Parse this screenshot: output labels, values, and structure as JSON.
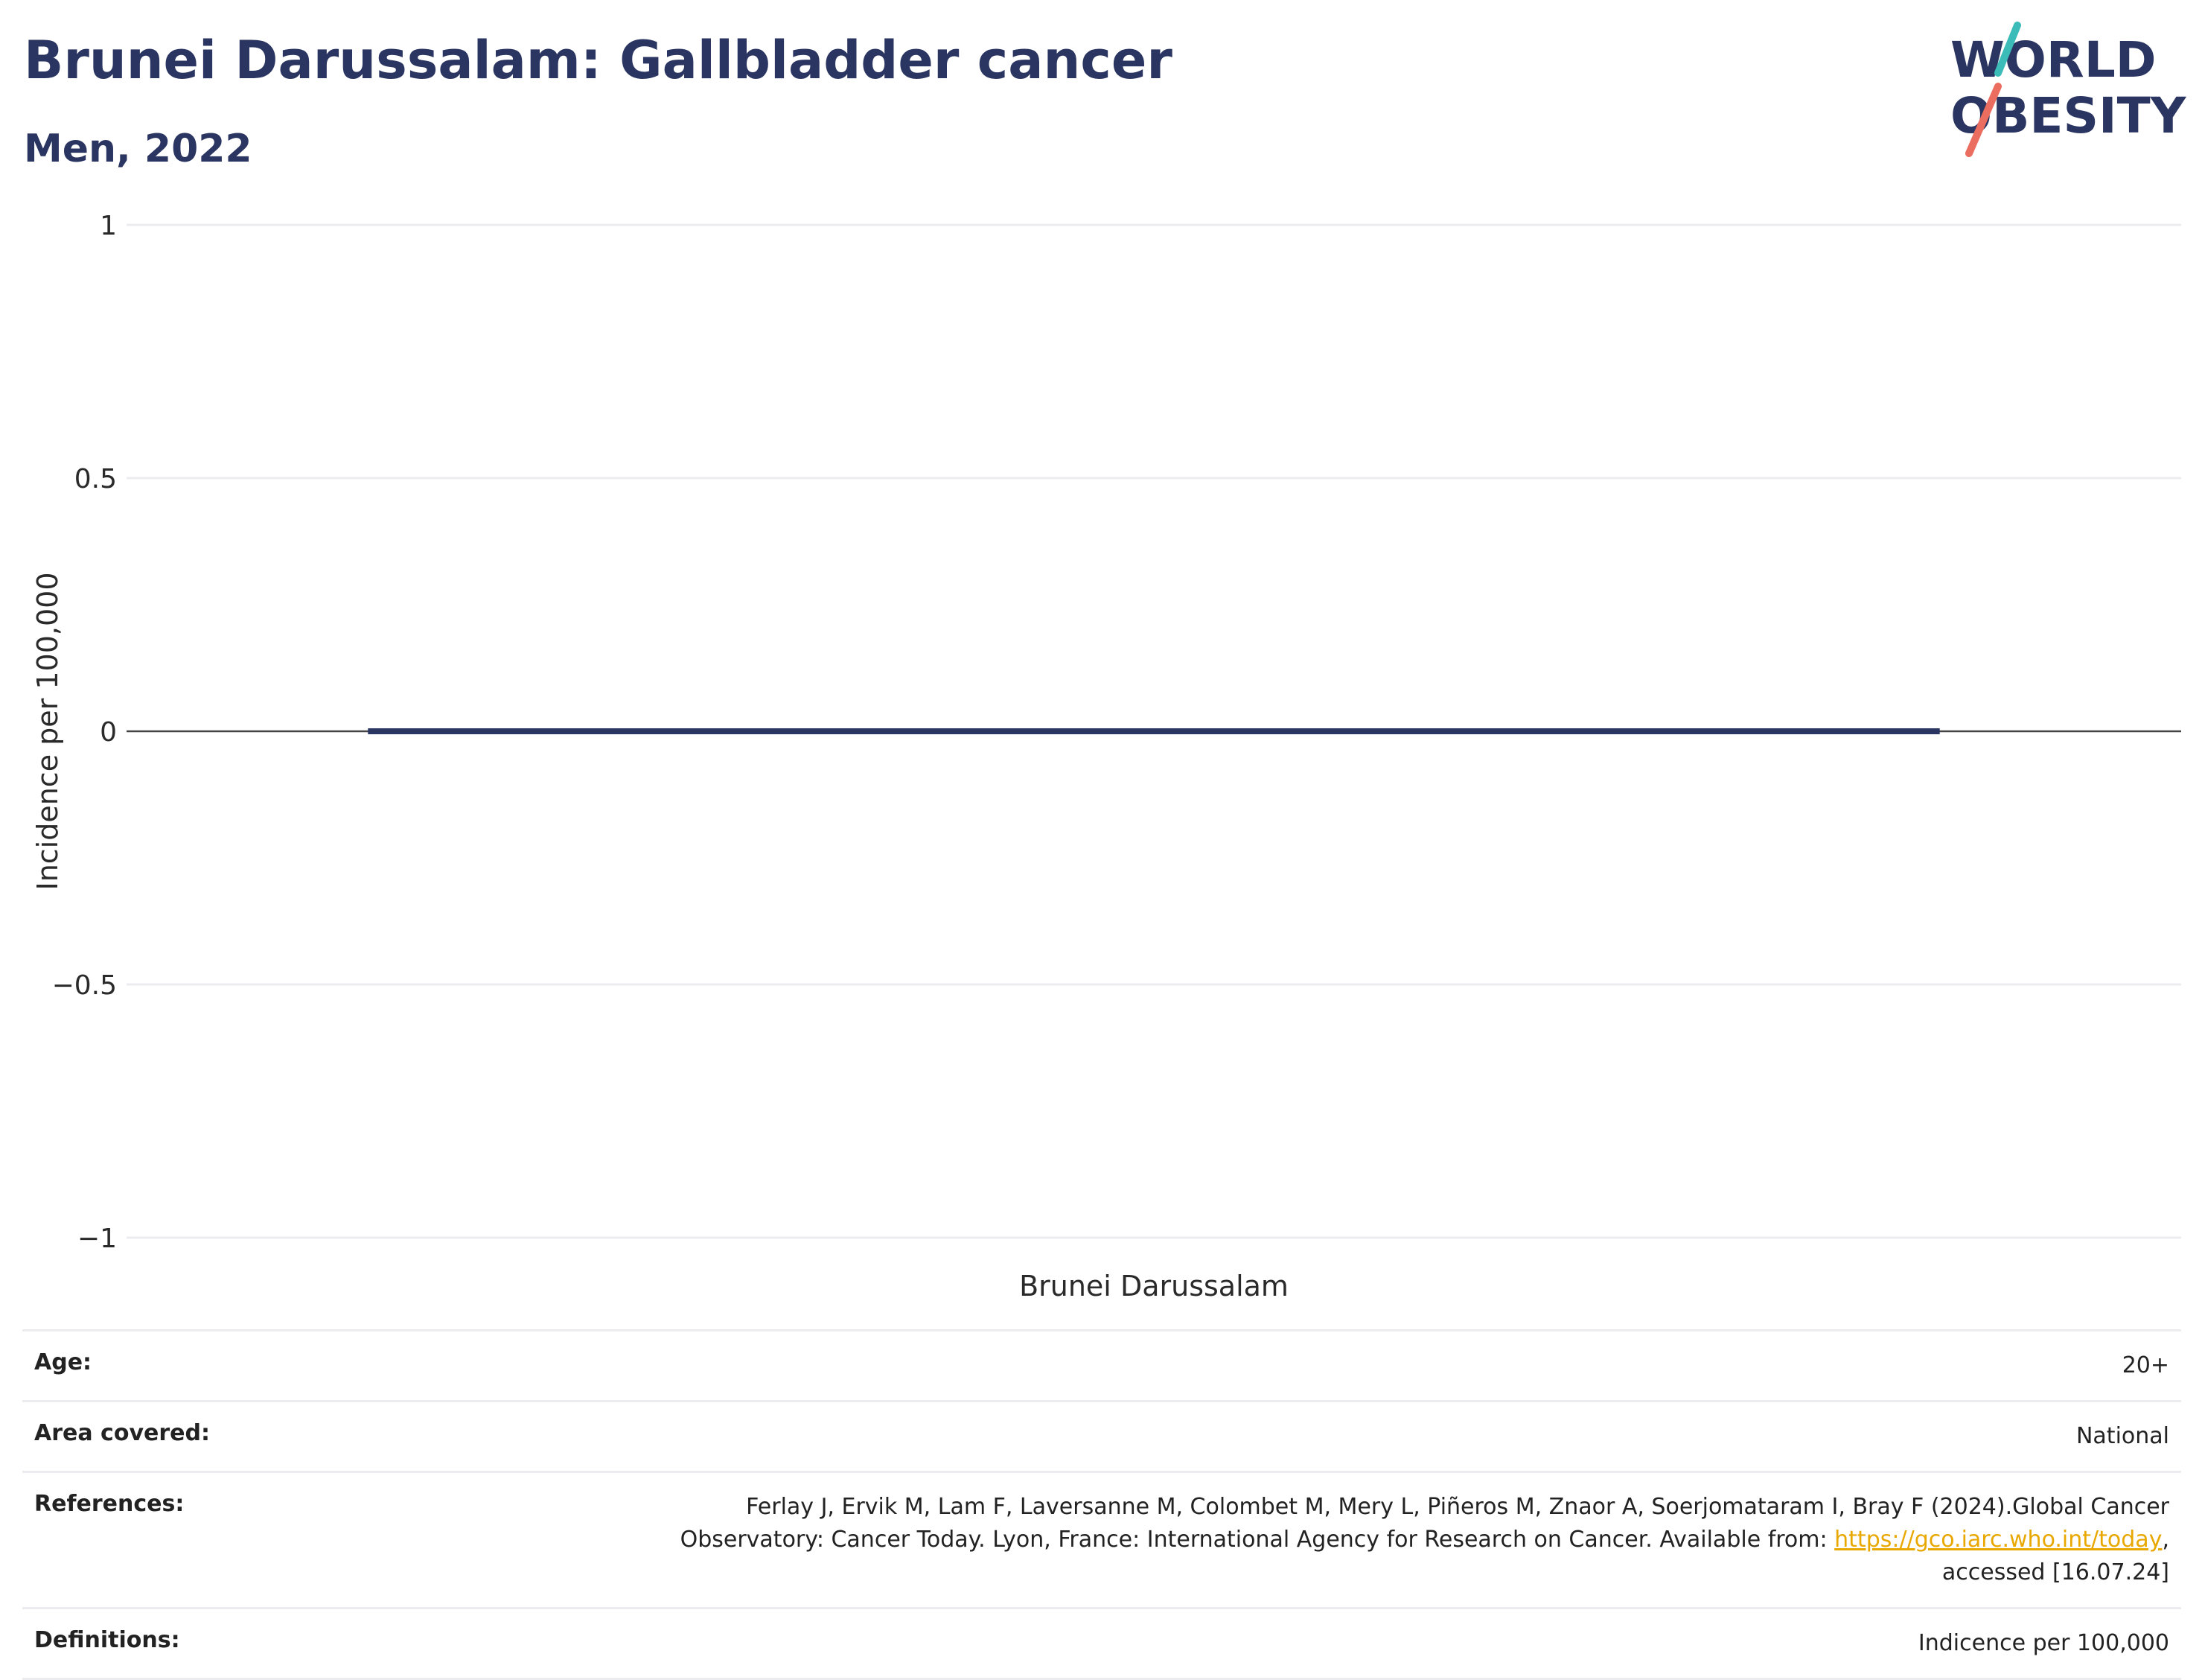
{
  "header": {
    "title": "Brunei Darussalam: Gallbladder cancer",
    "subtitle": "Men, 2022"
  },
  "logo": {
    "line1": "WORLD",
    "line2": "OBESITY",
    "colors": {
      "text": "#2b3561",
      "slash_top": "#3bbcb8",
      "slash_bottom": "#ea6d5f"
    }
  },
  "chart_data": {
    "type": "bar",
    "categories": [
      "Brunei Darussalam"
    ],
    "series": [
      {
        "values": [
          0
        ],
        "color": "#2b3561"
      }
    ],
    "ylabel": "Incidence per 100,000",
    "xlabel": "",
    "ylim": [
      -1,
      1
    ],
    "yticks": [
      1,
      0.5,
      0,
      -0.5,
      -1
    ],
    "ytick_labels": [
      "1",
      "0.5",
      "0",
      "−0.5",
      "−1"
    ],
    "grid": true,
    "zero_line_color": "#444444",
    "grid_color": "#ececf0"
  },
  "meta": {
    "age_key": "Age:",
    "age_val": "20+",
    "area_key": "Area covered:",
    "area_val": "National",
    "ref_key": "References:",
    "ref_line1": "Ferlay J, Ervik M, Lam F, Laversanne M, Colombet M, Mery L, Piñeros M, Znaor A, Soerjomataram I, Bray F (2024).Global Cancer",
    "ref_line2_pre": "Observatory: Cancer Today. Lyon, France: International Agency for Research on Cancer. Available from: ",
    "ref_link": "https://gco.iarc.who.int/today",
    "ref_line2_post": ",",
    "ref_line3": "accessed [16.07.24]",
    "def_key": "Definitions:",
    "def_val": "Indicence per 100,000",
    "link_color": "#e8a800"
  }
}
